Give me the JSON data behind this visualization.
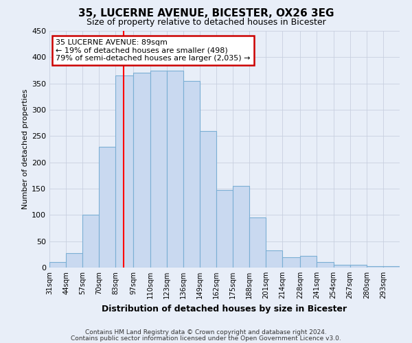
{
  "title": "35, LUCERNE AVENUE, BICESTER, OX26 3EG",
  "subtitle": "Size of property relative to detached houses in Bicester",
  "xlabel": "Distribution of detached houses by size in Bicester",
  "ylabel": "Number of detached properties",
  "categories": [
    "31sqm",
    "44sqm",
    "57sqm",
    "70sqm",
    "83sqm",
    "97sqm",
    "110sqm",
    "123sqm",
    "136sqm",
    "149sqm",
    "162sqm",
    "175sqm",
    "188sqm",
    "201sqm",
    "214sqm",
    "228sqm",
    "241sqm",
    "254sqm",
    "267sqm",
    "280sqm",
    "293sqm"
  ],
  "values": [
    10,
    27,
    100,
    230,
    365,
    370,
    375,
    375,
    355,
    260,
    147,
    155,
    95,
    33,
    20,
    22,
    11,
    5,
    5,
    3,
    3
  ],
  "bar_color": "#c9d9f0",
  "bar_edge_color": "#7bafd4",
  "ylim": [
    0,
    450
  ],
  "yticks": [
    0,
    50,
    100,
    150,
    200,
    250,
    300,
    350,
    400,
    450
  ],
  "red_line_x": 89,
  "annotation_line1": "35 LUCERNE AVENUE: 89sqm",
  "annotation_line2": "← 19% of detached houses are smaller (498)",
  "annotation_line3": "79% of semi-detached houses are larger (2,035) →",
  "annotation_box_color": "#ffffff",
  "annotation_box_edge": "#cc0000",
  "background_color": "#e8eef8",
  "grid_color": "#c8d0e0",
  "footer_line1": "Contains HM Land Registry data © Crown copyright and database right 2024.",
  "footer_line2": "Contains public sector information licensed under the Open Government Licence v3.0.",
  "bin_edges": [
    31,
    44,
    57,
    70,
    83,
    97,
    110,
    123,
    136,
    149,
    162,
    175,
    188,
    201,
    214,
    228,
    241,
    254,
    267,
    280,
    293,
    306
  ]
}
